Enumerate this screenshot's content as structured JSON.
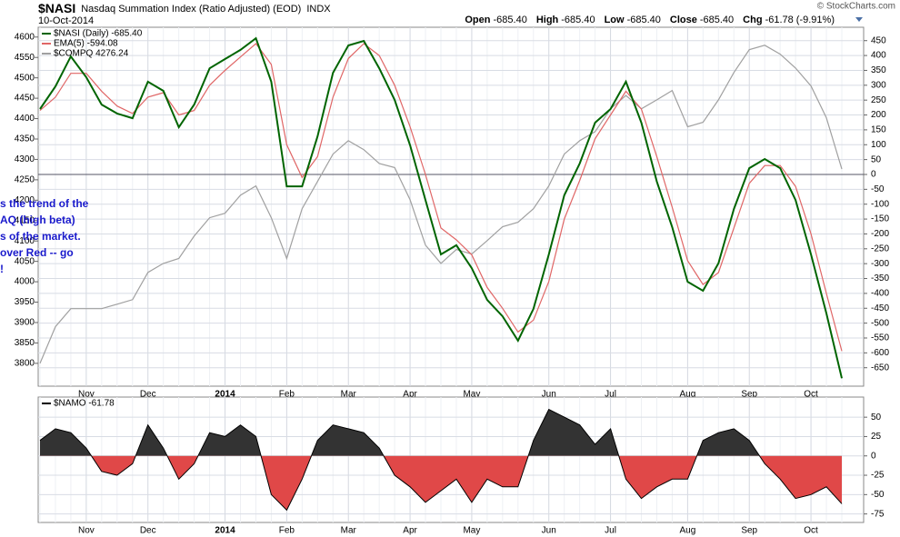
{
  "header": {
    "symbol": "$NASI",
    "name": "Nasdaq Summation Index (Ratio Adjusted) (EOD)",
    "exchange": "INDX",
    "date": "10-Oct-2014",
    "quote": [
      {
        "label": "Open",
        "value": "-685.40"
      },
      {
        "label": "High",
        "value": "-685.40"
      },
      {
        "label": "Low",
        "value": "-685.40"
      },
      {
        "label": "Close",
        "value": "-685.40"
      },
      {
        "label": "Chg",
        "value": "-61.78 (-9.91%)"
      }
    ],
    "credit": "© StockCharts.com"
  },
  "chart_data": [
    {
      "type": "line",
      "categories": [
        null,
        null,
        null,
        "Nov",
        null,
        null,
        null,
        "Dec",
        null,
        null,
        null,
        null,
        "2014",
        null,
        null,
        null,
        "Feb",
        null,
        null,
        null,
        "Mar",
        null,
        null,
        null,
        "Apr",
        null,
        null,
        null,
        "May",
        null,
        null,
        null,
        null,
        "Jun",
        null,
        null,
        null,
        "Jul",
        null,
        null,
        null,
        null,
        "Aug",
        null,
        null,
        null,
        "Sep",
        null,
        null,
        null,
        "Oct",
        null,
        null
      ],
      "ylim": [
        3744,
        4624
      ],
      "yticks": [
        3800,
        3850,
        3900,
        3950,
        4000,
        4050,
        4100,
        4150,
        4200,
        4250,
        4300,
        4350,
        4400,
        4450,
        4500,
        4550,
        4600
      ],
      "y2lim": [
        -712,
        495
      ],
      "y2ticks": [
        -650,
        -600,
        -550,
        -500,
        -450,
        -400,
        -350,
        -300,
        -250,
        -200,
        -150,
        -100,
        -50,
        0,
        50,
        100,
        150,
        200,
        250,
        300,
        350,
        400,
        450
      ],
      "grid": true,
      "zero_line": true,
      "legend": "upper left",
      "annotations": [
        "s the trend of the",
        "AQ (high beta)",
        "s of the market.",
        "over Red -- go",
        "!"
      ],
      "series": [
        {
          "name": "$COMPQ 4276.24",
          "color": "#a0a0a0",
          "values": [
            3800,
            3890,
            3934,
            3934,
            3934,
            3945,
            3956,
            4023,
            4045,
            4057,
            4112,
            4157,
            4168,
            4212,
            4235,
            4157,
            4057,
            4179,
            4246,
            4313,
            4346,
            4324,
            4290,
            4280,
            4201,
            4090,
            4045,
            4079,
            4068,
            4101,
            4135,
            4146,
            4179,
            4235,
            4313,
            4346,
            4368,
            4424,
            4457,
            4424,
            4446,
            4469,
            4380,
            4391,
            4446,
            4513,
            4569,
            4580,
            4558,
            4524,
            4480,
            4402,
            4276.24
          ]
        },
        {
          "name": "EMA(5) -594.08",
          "color": "#e06666",
          "axis": "y2",
          "values": [
            215,
            260,
            340,
            340,
            280,
            230,
            205,
            260,
            275,
            200,
            215,
            300,
            350,
            395,
            440,
            370,
            100,
            -10,
            60,
            260,
            390,
            440,
            400,
            300,
            160,
            0,
            -180,
            -220,
            -270,
            -380,
            -450,
            -530,
            -490,
            -360,
            -150,
            -20,
            120,
            200,
            280,
            220,
            60,
            -110,
            -290,
            -370,
            -330,
            -180,
            -30,
            30,
            30,
            -40,
            -200,
            -400,
            -594.08
          ]
        },
        {
          "name": "$NASI (Daily) -685.40",
          "color": "#006400",
          "axis": "y2",
          "values": [
            220,
            296,
            397,
            327,
            235,
            205,
            189,
            312,
            281,
            159,
            235,
            357,
            388,
            419,
            458,
            312,
            -40,
            -40,
            128,
            342,
            434,
            449,
            357,
            251,
            98,
            -86,
            -269,
            -238,
            -315,
            -422,
            -477,
            -559,
            -452,
            -269,
            -70,
            37,
            174,
            220,
            312,
            174,
            -24,
            -177,
            -361,
            -391,
            -299,
            -116,
            21,
            52,
            21,
            -86,
            -269,
            -467,
            -685.4
          ]
        }
      ]
    },
    {
      "type": "area",
      "categories": [
        null,
        null,
        null,
        "Nov",
        null,
        null,
        null,
        "Dec",
        null,
        null,
        null,
        null,
        "2014",
        null,
        null,
        null,
        "Feb",
        null,
        null,
        null,
        "Mar",
        null,
        null,
        null,
        "Apr",
        null,
        null,
        null,
        "May",
        null,
        null,
        null,
        null,
        "Jun",
        null,
        null,
        null,
        "Jul",
        null,
        null,
        null,
        null,
        "Aug",
        null,
        null,
        null,
        "Sep",
        null,
        null,
        null,
        "Oct",
        null,
        null
      ],
      "ylim": [
        -86,
        76
      ],
      "yticks": [
        50,
        25,
        0,
        -25,
        -50,
        -75
      ],
      "grid": true,
      "series": [
        {
          "name": "$NAMO -61.78",
          "color": "#333333",
          "negative_color": "#e04848",
          "values": [
            20,
            35,
            30,
            10,
            -20,
            -25,
            -10,
            40,
            10,
            -30,
            -10,
            30,
            25,
            40,
            25,
            -50,
            -70,
            -30,
            20,
            40,
            35,
            30,
            10,
            -25,
            -40,
            -60,
            -45,
            -30,
            -60,
            -30,
            -40,
            -40,
            20,
            60,
            50,
            40,
            15,
            35,
            -30,
            -55,
            -40,
            -30,
            -30,
            20,
            30,
            35,
            20,
            -10,
            -30,
            -55,
            -50,
            -40,
            -61.78
          ]
        }
      ]
    }
  ]
}
